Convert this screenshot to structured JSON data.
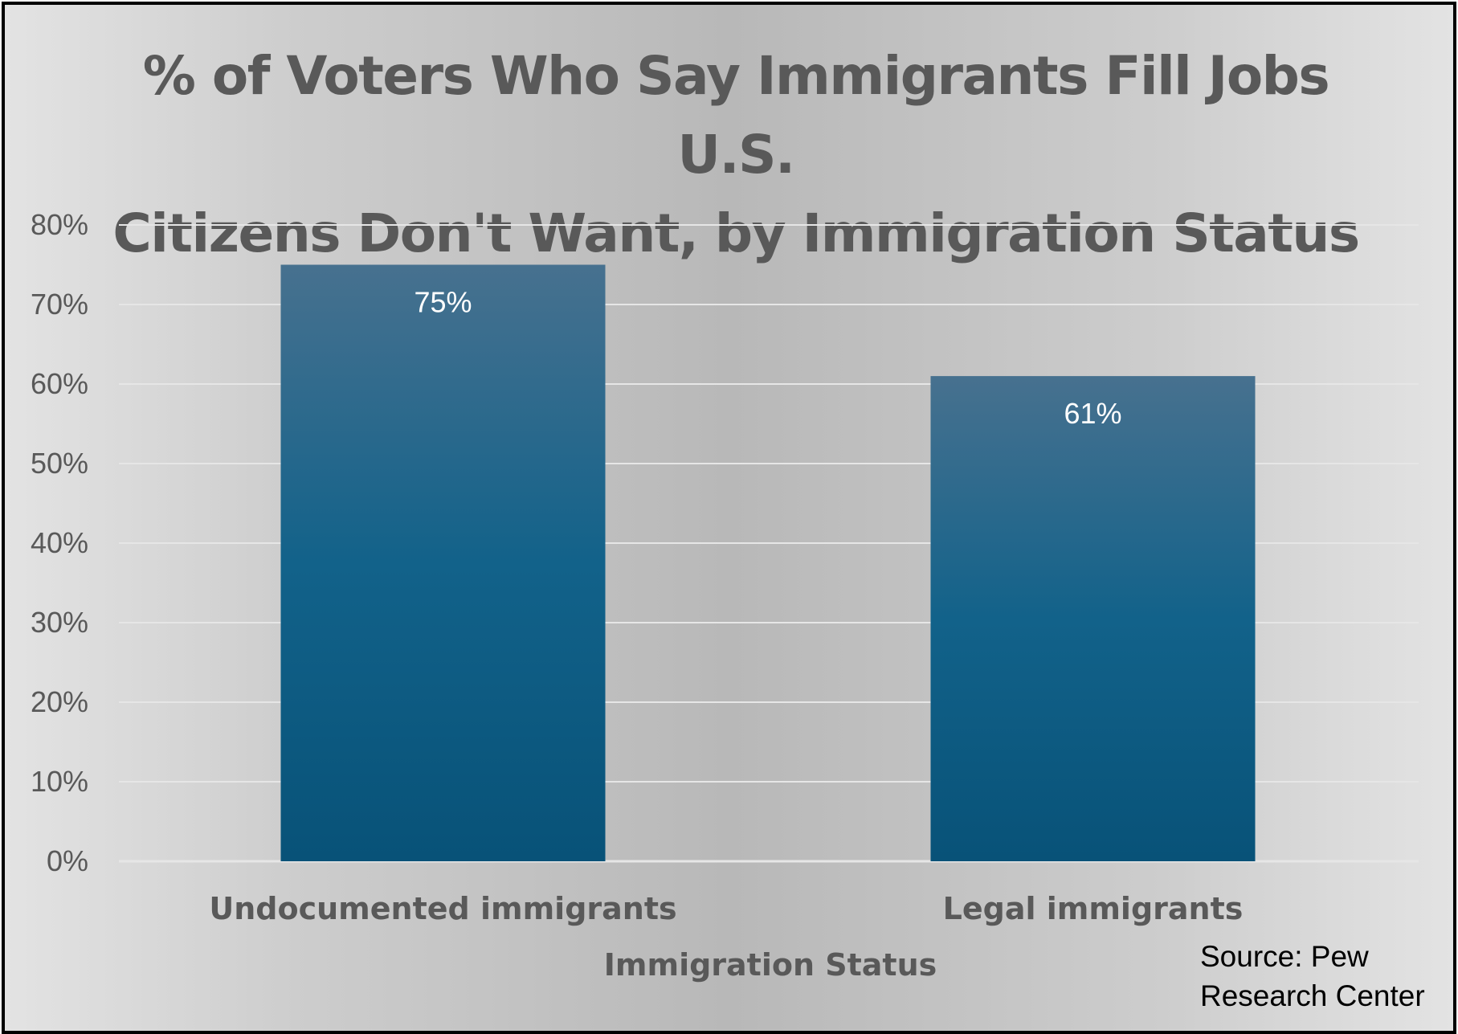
{
  "chart_data": {
    "type": "bar",
    "title": "% of Voters Who Say Immigrants Fill Jobs U.S. Citizens Don't Want, by Immigration Status",
    "title_lines": [
      "% of Voters Who Say Immigrants Fill Jobs U.S.",
      "Citizens Don't Want, by Immigration Status"
    ],
    "categories": [
      "Undocumented immigrants",
      "Legal immigrants"
    ],
    "values": [
      75,
      61
    ],
    "data_labels": [
      "75%",
      "61%"
    ],
    "xlabel": "Immigration Status",
    "ylabel": "",
    "ylim": [
      0,
      80
    ],
    "yticks": [
      0,
      10,
      20,
      30,
      40,
      50,
      60,
      70,
      80
    ],
    "ytick_labels": [
      "0%",
      "10%",
      "20%",
      "30%",
      "40%",
      "50%",
      "60%",
      "70%",
      "80%"
    ],
    "grid": true,
    "legend": "none"
  },
  "source": {
    "line1": "Source: Pew",
    "line2": "Research Center"
  },
  "colors": {
    "bar_top": "#47718f",
    "bar_mid": "#12628a",
    "bar_bottom": "#085278",
    "gridline": "#e6e6e6",
    "text": "#595959"
  }
}
